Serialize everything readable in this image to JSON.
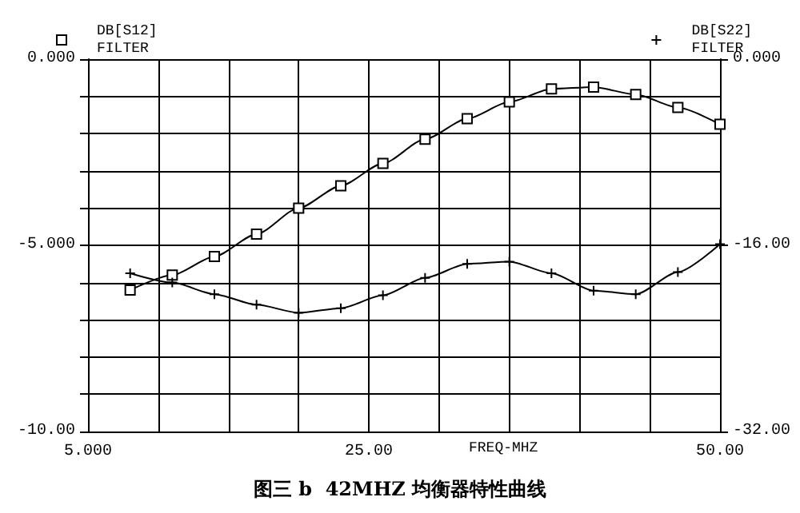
{
  "chart_data": {
    "type": "line",
    "title": "图三 b  42MHZ 均衡器特性曲线",
    "xlabel": "FREQ-MHZ",
    "legend": "top",
    "grid": true,
    "line_style": "solid",
    "xlim": [
      5,
      50
    ],
    "xticks": [
      {
        "value": 5,
        "label": "5.000"
      },
      {
        "value": 10,
        "label": null
      },
      {
        "value": 15,
        "label": null
      },
      {
        "value": 20,
        "label": null
      },
      {
        "value": 25,
        "label": "25.00"
      },
      {
        "value": 30,
        "label": null
      },
      {
        "value": 35,
        "label": null
      },
      {
        "value": 40,
        "label": null
      },
      {
        "value": 45,
        "label": null
      },
      {
        "value": 50,
        "label": "50.00"
      }
    ],
    "ylim": [
      -10,
      0
    ],
    "yticks": [
      {
        "value": -10,
        "label": "-10.00"
      },
      {
        "value": -9,
        "label": null
      },
      {
        "value": -8,
        "label": null
      },
      {
        "value": -7,
        "label": null
      },
      {
        "value": -6,
        "label": null
      },
      {
        "value": -5,
        "label": "-5.000"
      },
      {
        "value": -4,
        "label": null
      },
      {
        "value": -3,
        "label": null
      },
      {
        "value": -2,
        "label": null
      },
      {
        "value": -1,
        "label": null
      },
      {
        "value": 0,
        "label": "0.000"
      }
    ],
    "y2lim": [
      -32,
      0
    ],
    "y2ticks": [
      {
        "value": -32,
        "label": "-32.00"
      },
      {
        "value": -16,
        "label": "-16.00"
      },
      {
        "value": 0,
        "label": "0.000"
      }
    ],
    "series": [
      {
        "name": "DB[S12]\nFILTER",
        "color": "#000000",
        "marker": "square",
        "x": [
          8,
          11,
          14,
          17,
          20,
          23,
          26,
          29,
          32,
          35,
          38,
          41,
          44,
          47,
          50
        ],
        "values": [
          -6.2,
          -5.8,
          -5.3,
          -4.7,
          -4.0,
          -3.4,
          -2.8,
          -2.15,
          -1.6,
          -1.15,
          -0.8,
          -0.75,
          -0.95,
          -1.3,
          -1.75
        ]
      },
      {
        "name": "DB[S22]\nFILTER",
        "color": "#000000",
        "marker": "cross",
        "axis": "y2",
        "x": [
          8,
          11,
          14,
          17,
          20,
          23,
          26,
          29,
          32,
          35,
          38,
          41,
          44,
          47,
          50
        ],
        "values": [
          -18.4,
          -19.2,
          -20.2,
          -21.1,
          -21.8,
          -21.4,
          -20.3,
          -18.8,
          -17.6,
          -17.4,
          -18.4,
          -19.9,
          -20.2,
          -18.3,
          -15.9
        ]
      }
    ]
  }
}
